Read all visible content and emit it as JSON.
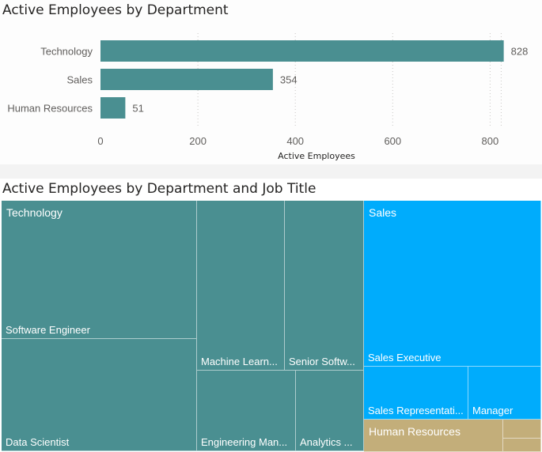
{
  "charts": {
    "bar": {
      "title": "Active Employees by Department"
    },
    "treemap": {
      "title": "Active Employees by Department and Job Title",
      "groups": [
        {
          "name": "Technology",
          "color": "#4A8F91"
        },
        {
          "name": "Sales",
          "color": "#00ACFC"
        },
        {
          "name": "Human Resources",
          "color": "#C3AE7A"
        }
      ],
      "tiles": [
        {
          "label": "Software Engineer",
          "group": "Technology"
        },
        {
          "label": "Data Scientist",
          "group": "Technology"
        },
        {
          "label": "Machine Learn...",
          "group": "Technology"
        },
        {
          "label": "Senior Softw...",
          "group": "Technology"
        },
        {
          "label": "Engineering Man...",
          "group": "Technology"
        },
        {
          "label": "Analytics ...",
          "group": "Technology"
        },
        {
          "label": "Sales Executive",
          "group": "Sales"
        },
        {
          "label": "Sales Representati...",
          "group": "Sales"
        },
        {
          "label": "Manager",
          "group": "Sales"
        },
        {
          "label": "",
          "group": "Human Resources"
        },
        {
          "label": "",
          "group": "Human Resources"
        },
        {
          "label": "",
          "group": "Human Resources"
        }
      ]
    }
  },
  "chart_data": [
    {
      "type": "bar",
      "orientation": "horizontal",
      "title": "Active Employees by Department",
      "categories": [
        "Technology",
        "Sales",
        "Human Resources"
      ],
      "values": [
        828,
        354,
        51
      ],
      "data_labels": [
        "828",
        "354",
        "51"
      ],
      "xlabel": "Active Employees",
      "ylabel": "",
      "xlim": [
        0,
        850
      ],
      "xticks": [
        0,
        200,
        400,
        600,
        800
      ],
      "bar_color": "#4A8F91",
      "grid": true
    },
    {
      "type": "treemap",
      "title": "Active Employees by Department and Job Title",
      "groups": [
        "Technology",
        "Sales",
        "Human Resources"
      ],
      "leaves": [
        {
          "group": "Technology",
          "label": "Software Engineer",
          "value": 280
        },
        {
          "group": "Technology",
          "label": "Data Scientist",
          "value": 230
        },
        {
          "group": "Technology",
          "label": "Machine Learn...",
          "value": 110
        },
        {
          "group": "Technology",
          "label": "Senior Softw...",
          "value": 95
        },
        {
          "group": "Technology",
          "label": "Engineering Man...",
          "value": 65
        },
        {
          "group": "Technology",
          "label": "Analytics ...",
          "value": 48
        },
        {
          "group": "Sales",
          "label": "Sales Executive",
          "value": 230
        },
        {
          "group": "Sales",
          "label": "Sales Representati...",
          "value": 75
        },
        {
          "group": "Sales",
          "label": "Manager",
          "value": 49
        },
        {
          "group": "Human Resources",
          "label": "",
          "value": 27
        },
        {
          "group": "Human Resources",
          "label": "",
          "value": 13
        },
        {
          "group": "Human Resources",
          "label": "",
          "value": 11
        }
      ]
    }
  ]
}
